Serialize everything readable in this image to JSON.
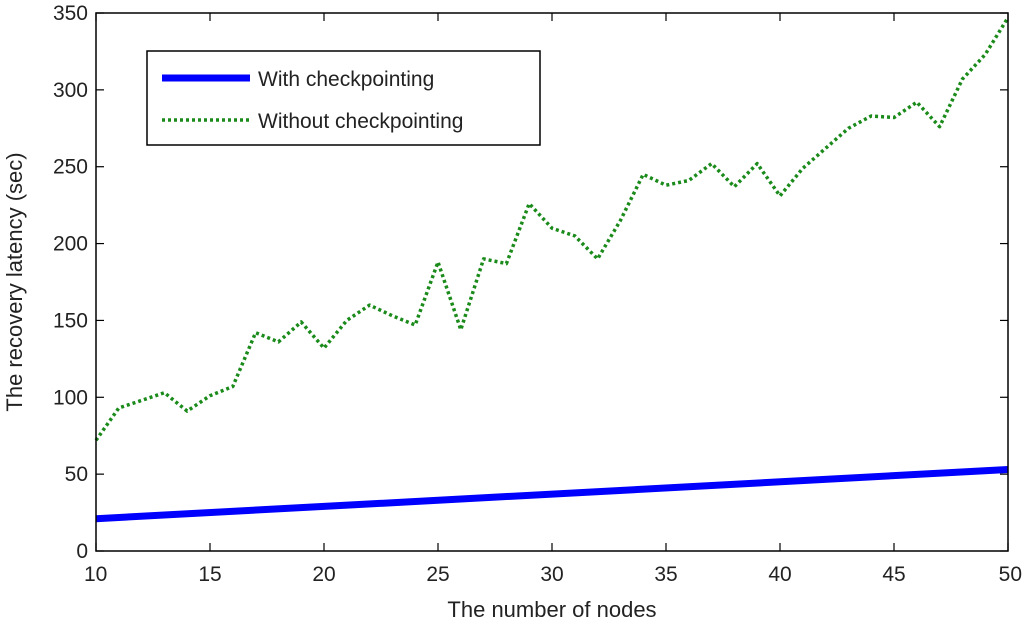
{
  "chart_data": {
    "type": "line",
    "xlabel": "The number of nodes",
    "ylabel": "The recovery latency (sec)",
    "xlim": [
      10,
      50
    ],
    "ylim": [
      0,
      350
    ],
    "xticks": [
      10,
      15,
      20,
      25,
      30,
      35,
      40,
      45,
      50
    ],
    "yticks": [
      0,
      50,
      100,
      150,
      200,
      250,
      300,
      350
    ],
    "grid": false,
    "legend_position": "top-left",
    "series": [
      {
        "name": "With checkpointing",
        "color": "#0000ff",
        "style": "solid",
        "x": [
          10,
          50
        ],
        "y": [
          21,
          53
        ]
      },
      {
        "name": "Without checkpointing",
        "color": "#1a8a1a",
        "style": "dotted",
        "x": [
          10,
          11,
          12,
          13,
          14,
          15,
          16,
          17,
          18,
          19,
          20,
          21,
          22,
          23,
          24,
          25,
          26,
          27,
          28,
          29,
          30,
          31,
          32,
          33,
          34,
          35,
          36,
          37,
          38,
          39,
          40,
          41,
          42,
          43,
          44,
          45,
          46,
          47,
          48,
          49,
          50
        ],
        "y": [
          72,
          93,
          98,
          103,
          91,
          101,
          107,
          142,
          136,
          149,
          132,
          150,
          160,
          153,
          147,
          188,
          144,
          190,
          187,
          226,
          210,
          205,
          190,
          215,
          245,
          238,
          241,
          252,
          237,
          252,
          231,
          249,
          262,
          275,
          283,
          282,
          292,
          276,
          307,
          323,
          347
        ]
      }
    ]
  }
}
